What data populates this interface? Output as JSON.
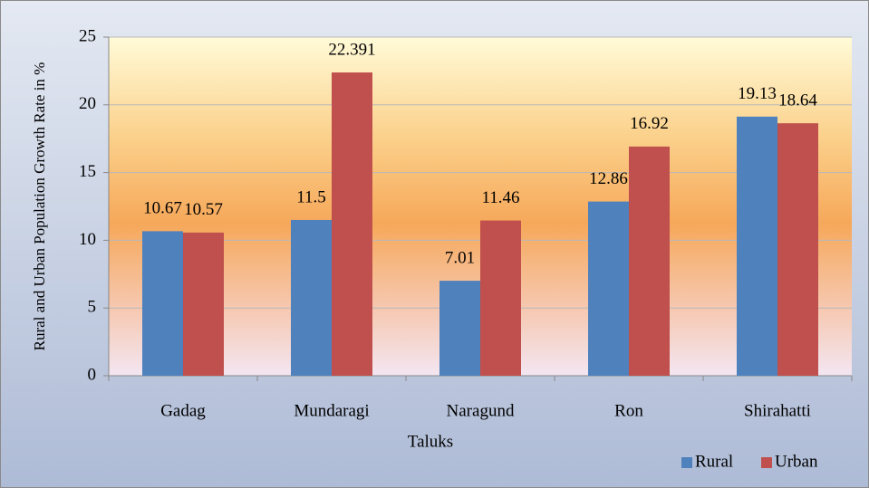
{
  "chart_data": {
    "type": "bar",
    "y_label": "Rural and Urban Population Growth Rate in %",
    "x_label": "Taluks",
    "categories": [
      "Gadag",
      "Mundaragi",
      "Naragund",
      "Ron",
      "Shirahatti"
    ],
    "series": [
      {
        "name": "Rural",
        "color": "#4f81bd",
        "values": [
          10.67,
          11.5,
          7.01,
          12.86,
          19.13
        ]
      },
      {
        "name": "Urban",
        "color": "#c0504d",
        "values": [
          10.57,
          22.391,
          11.46,
          16.92,
          18.64
        ]
      }
    ],
    "ylim": [
      0,
      25
    ],
    "yticks": [
      0,
      5,
      10,
      15,
      20,
      25
    ],
    "grid": true,
    "legend": "bottom-right"
  }
}
